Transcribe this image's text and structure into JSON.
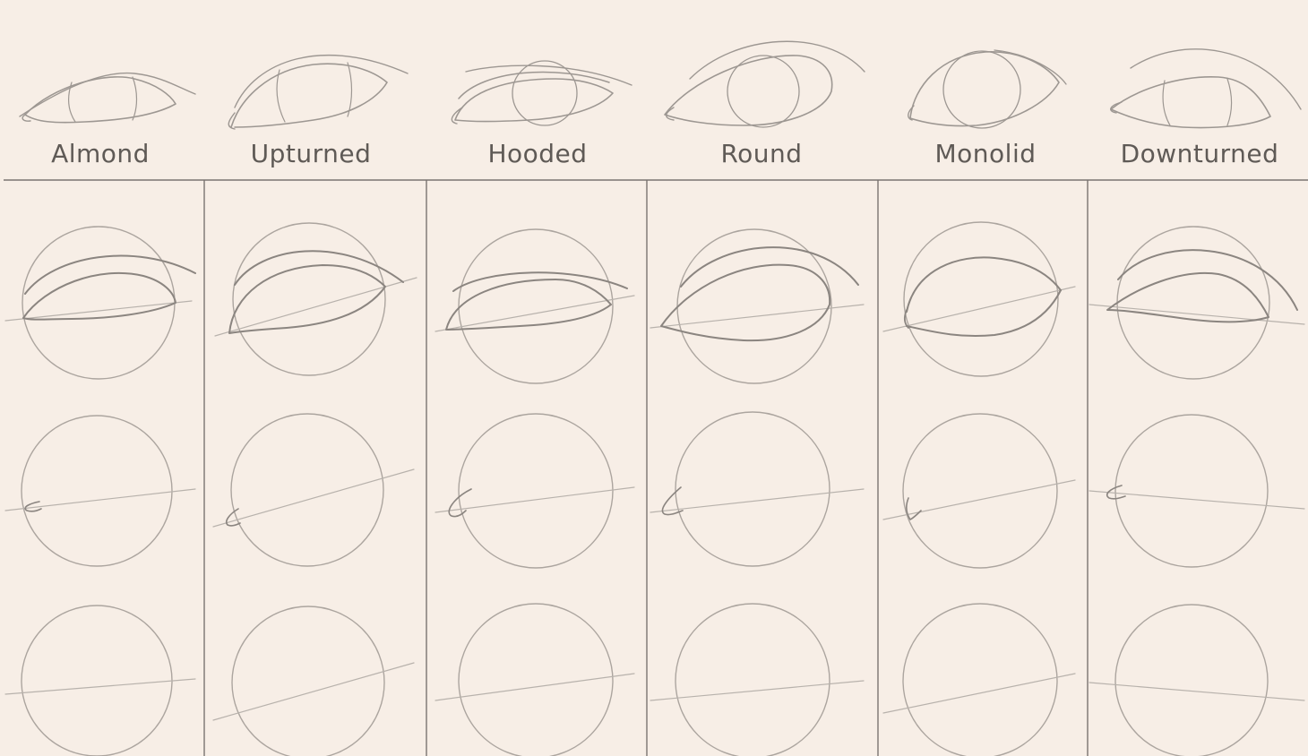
{
  "title": "",
  "palette": {
    "background": "#f7eee6",
    "sketch_light": "#b3aca6",
    "sketch_dark": "#8b8580",
    "divider": "#7a7470",
    "label_text": "#5f5a56"
  },
  "columns": [
    {
      "label": "Almond",
      "shape": "almond"
    },
    {
      "label": "Upturned",
      "shape": "upturned"
    },
    {
      "label": "Hooded",
      "shape": "hooded"
    },
    {
      "label": "Round",
      "shape": "round"
    },
    {
      "label": "Monolid",
      "shape": "monolid"
    },
    {
      "label": "Downturned",
      "shape": "downturned"
    }
  ],
  "construction_steps": [
    {
      "step": "final-eye"
    },
    {
      "step": "eyelids-and-crease"
    },
    {
      "step": "corner-mark"
    },
    {
      "step": "circle-and-tilt-line"
    }
  ]
}
